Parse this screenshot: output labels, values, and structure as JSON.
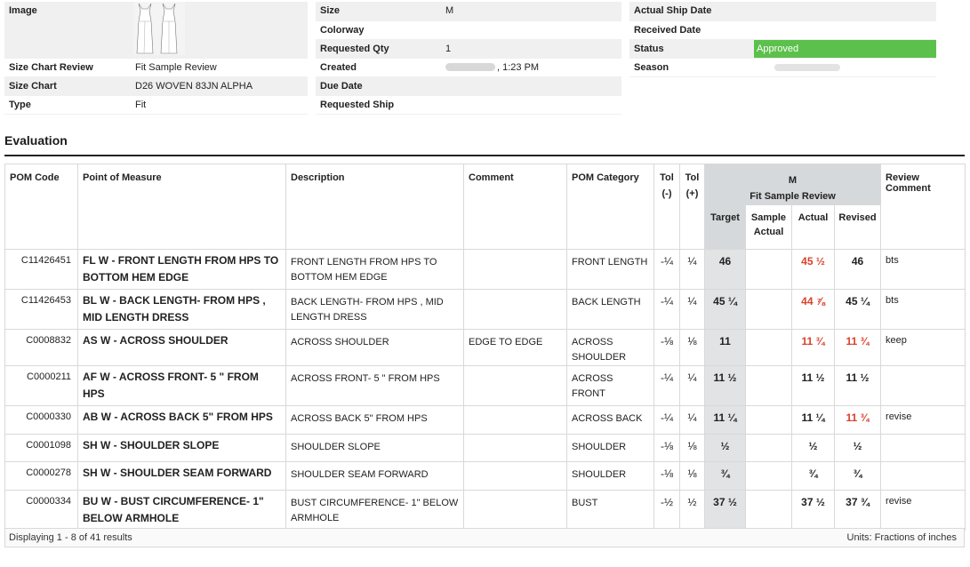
{
  "header": {
    "col1": {
      "image_label": "Image",
      "size_chart_review_label": "Size Chart Review",
      "size_chart_review_value": "Fit Sample Review",
      "size_chart_label": "Size Chart",
      "size_chart_value": "D26 WOVEN 83JN ALPHA",
      "type_label": "Type",
      "type_value": "Fit"
    },
    "col2": {
      "size_label": "Size",
      "size_value": "M",
      "colorway_label": "Colorway",
      "colorway_value": "",
      "requested_qty_label": "Requested Qty",
      "requested_qty_value": "1",
      "created_label": "Created",
      "created_value": ", 1:23 PM",
      "due_date_label": "Due Date",
      "due_date_value": "",
      "requested_ship_label": "Requested Ship",
      "requested_ship_value": ""
    },
    "col3": {
      "actual_ship_label": "Actual Ship Date",
      "actual_ship_value": "",
      "received_label": "Received Date",
      "received_value": "",
      "status_label": "Status",
      "status_value": "Approved",
      "season_label": "Season",
      "season_value": ""
    }
  },
  "colors": {
    "status_approved": "#5cc04c",
    "measure_out_of_tol": "#d9412b",
    "size_group_header": "#d5d9db"
  },
  "evaluation": {
    "title": "Evaluation",
    "columns": {
      "pom_code": "POM Code",
      "point_of_measure": "Point of Measure",
      "description": "Description",
      "comment": "Comment",
      "pom_category": "POM Category",
      "tol_minus_top": "Tol",
      "tol_minus_bottom": "(-)",
      "tol_plus_top": "Tol",
      "tol_plus_bottom": "(+)",
      "size_group": "M",
      "size_group_sub": "Fit Sample Review",
      "target": "Target",
      "sample_actual": "Sample Actual",
      "actual": "Actual",
      "revised": "Revised",
      "review_comment": "Review Comment"
    },
    "rows": [
      {
        "code": "C11426451",
        "pom": "FL W - FRONT LENGTH FROM HPS TO BOTTOM HEM EDGE",
        "desc": "FRONT LENGTH FROM HPS TO BOTTOM HEM EDGE",
        "comment": "",
        "category": "FRONT LENGTH",
        "tol_minus": "-¼",
        "tol_plus": "¼",
        "target": "46",
        "sample_actual": "",
        "actual": "45 ½",
        "actual_red": true,
        "revised": "46",
        "revised_red": false,
        "review": "bts"
      },
      {
        "code": "C11426453",
        "pom": "BL W - BACK LENGTH- FROM HPS , MID LENGTH DRESS",
        "desc": "BACK LENGTH- FROM HPS , MID LENGTH DRESS",
        "comment": "",
        "category": "BACK LENGTH",
        "tol_minus": "-¼",
        "tol_plus": "¼",
        "target": "45 ¼",
        "sample_actual": "",
        "actual": "44 ⅞",
        "actual_red": true,
        "revised": "45 ¼",
        "revised_red": false,
        "review": "bts"
      },
      {
        "code": "C0008832",
        "pom": "AS W - ACROSS SHOULDER",
        "desc": "ACROSS SHOULDER",
        "comment": "EDGE TO EDGE",
        "category": "ACROSS SHOULDER",
        "tol_minus": "-⅛",
        "tol_plus": "⅛",
        "target": "11",
        "sample_actual": "",
        "actual": "11 ¾",
        "actual_red": true,
        "revised": "11 ¾",
        "revised_red": true,
        "review": "keep"
      },
      {
        "code": "C0000211",
        "pom": "AF W - ACROSS FRONT- 5 \" FROM HPS",
        "desc": "ACROSS FRONT- 5 \" FROM HPS",
        "comment": "",
        "category": "ACROSS FRONT",
        "tol_minus": "-¼",
        "tol_plus": "¼",
        "target": "11 ½",
        "sample_actual": "",
        "actual": "11 ½",
        "actual_red": false,
        "revised": "11 ½",
        "revised_red": false,
        "review": ""
      },
      {
        "code": "C0000330",
        "pom": "AB W - ACROSS BACK 5\" FROM HPS",
        "desc": "ACROSS BACK 5\" FROM HPS",
        "comment": "",
        "category": "ACROSS BACK",
        "tol_minus": "-¼",
        "tol_plus": "¼",
        "target": "11 ¼",
        "sample_actual": "",
        "actual": "11 ¼",
        "actual_red": false,
        "revised": "11 ¾",
        "revised_red": true,
        "review": "revise"
      },
      {
        "code": "C0001098",
        "pom": "SH W - SHOULDER SLOPE",
        "desc": "SHOULDER SLOPE",
        "comment": "",
        "category": "SHOULDER",
        "tol_minus": "-⅛",
        "tol_plus": "⅛",
        "target": "½",
        "sample_actual": "",
        "actual": "½",
        "actual_red": false,
        "revised": "½",
        "revised_red": false,
        "review": ""
      },
      {
        "code": "C0000278",
        "pom": "SH W - SHOULDER SEAM FORWARD",
        "desc": "SHOULDER SEAM FORWARD",
        "comment": "",
        "category": "SHOULDER",
        "tol_minus": "-⅛",
        "tol_plus": "⅛",
        "target": "¾",
        "sample_actual": "",
        "actual": "¾",
        "actual_red": false,
        "revised": "¾",
        "revised_red": false,
        "review": ""
      },
      {
        "code": "C0000334",
        "pom": "BU W - BUST CIRCUMFERENCE- 1\" BELOW ARMHOLE",
        "desc": "BUST CIRCUMFERENCE- 1\" BELOW ARMHOLE",
        "comment": "",
        "category": "BUST",
        "tol_minus": "-½",
        "tol_plus": "½",
        "target": "37 ½",
        "sample_actual": "",
        "actual": "37 ½",
        "actual_red": false,
        "revised": "37 ¾",
        "revised_red": false,
        "review": "revise"
      }
    ],
    "footer_left": "Displaying 1 - 8 of 41 results",
    "footer_right": "Units: Fractions of inches"
  }
}
